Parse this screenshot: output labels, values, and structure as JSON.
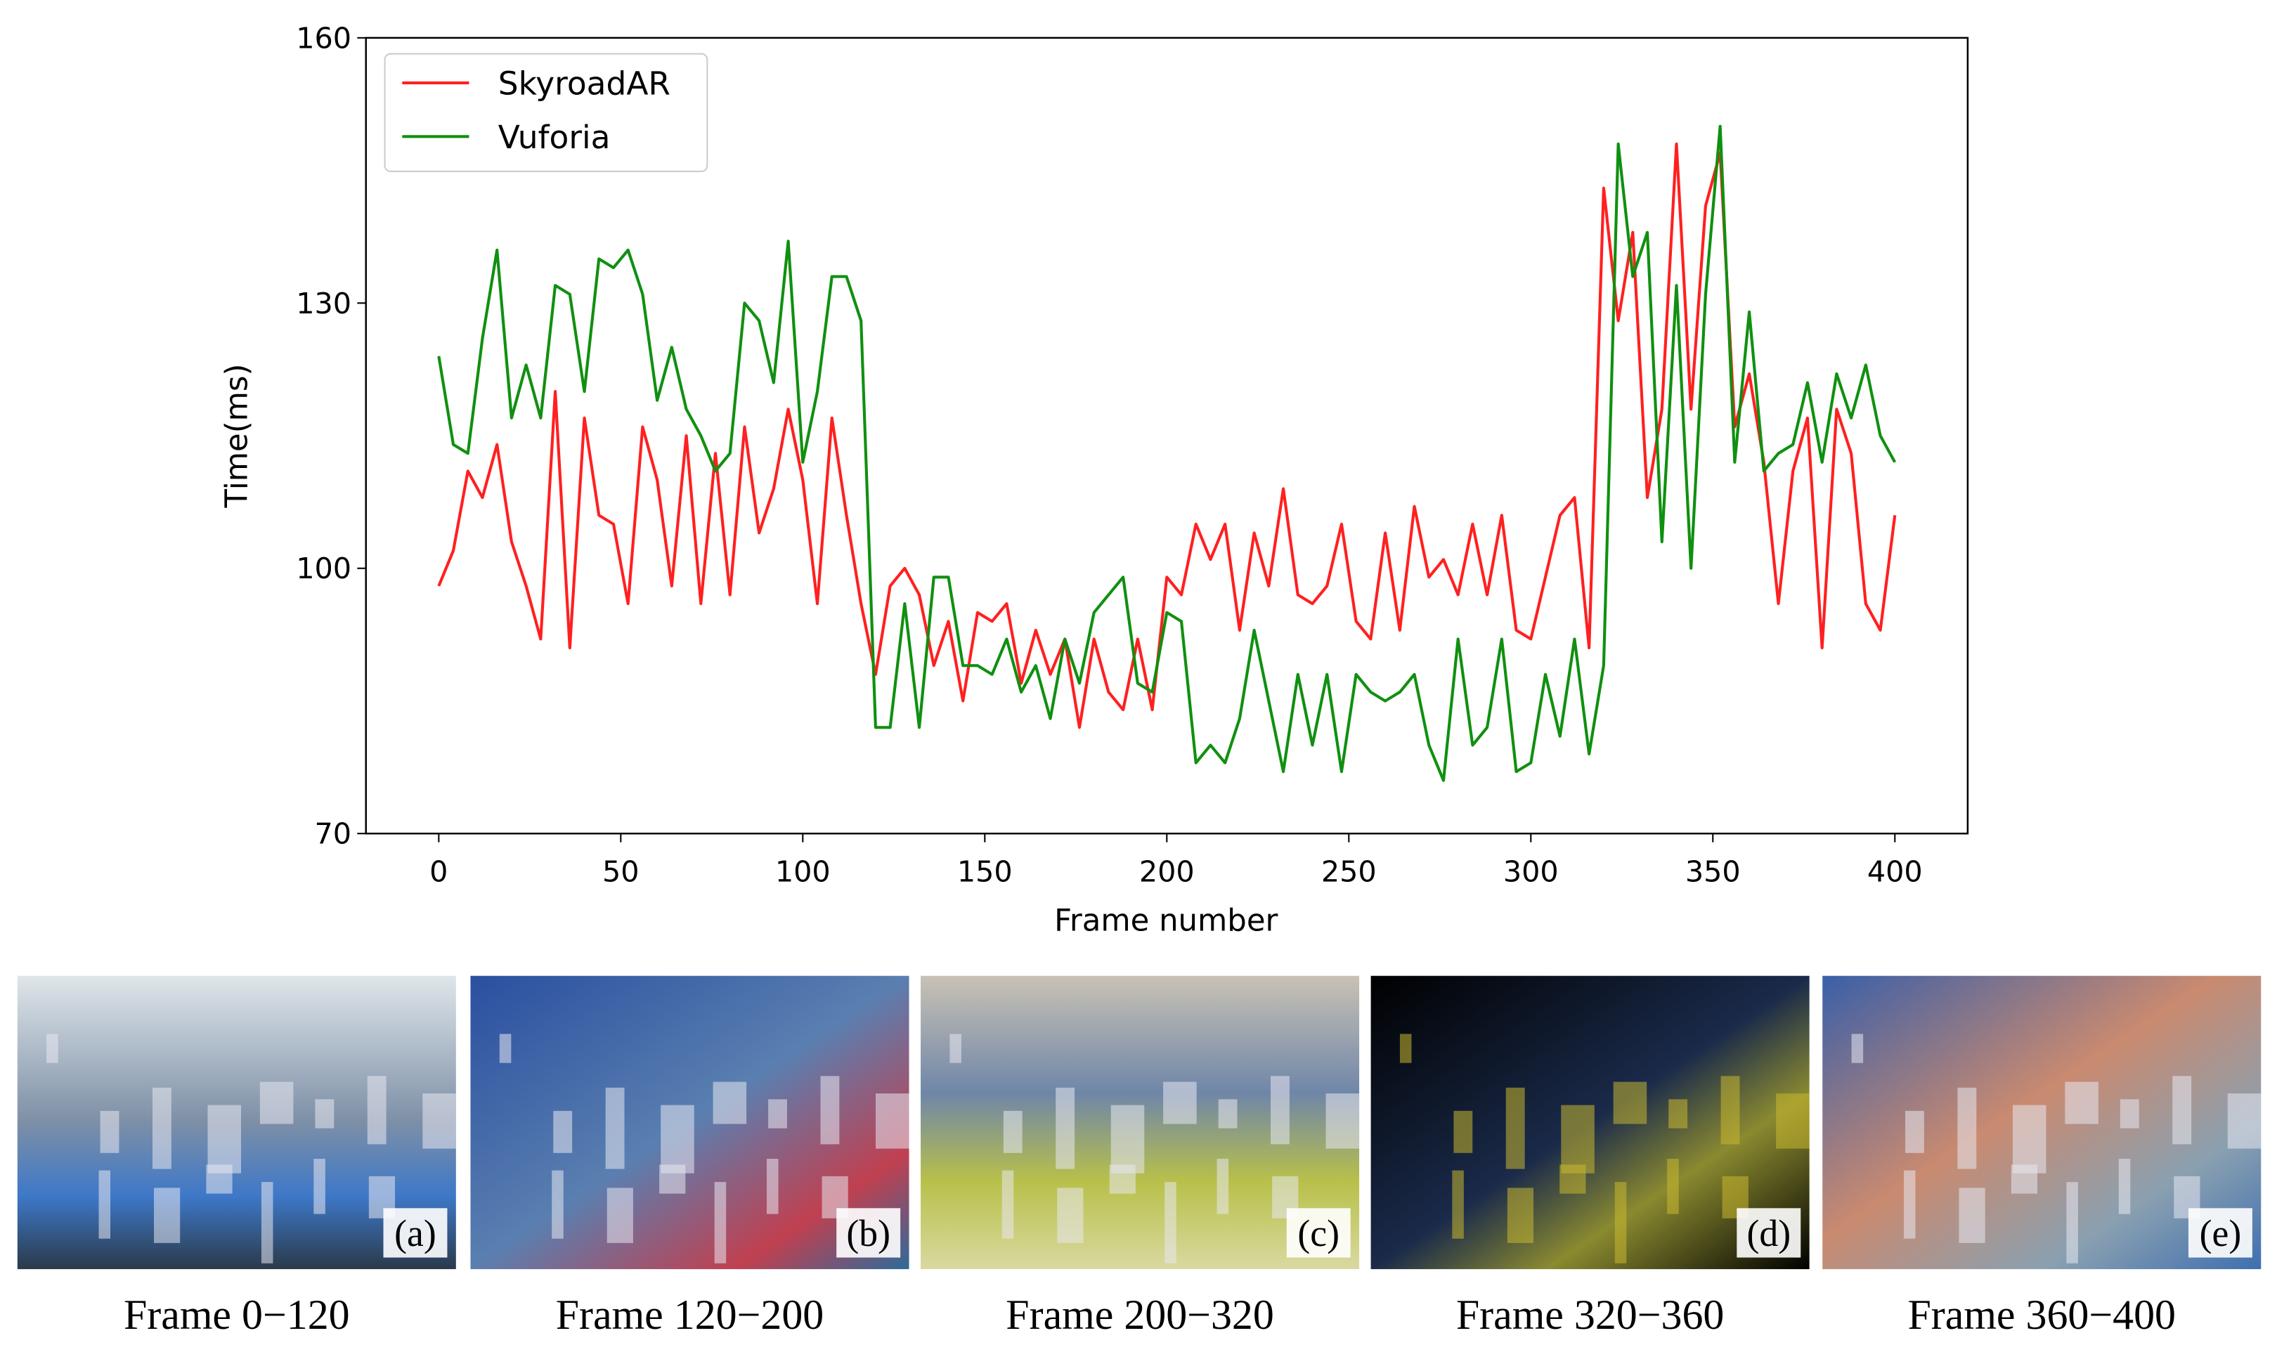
{
  "chart_data": {
    "type": "line",
    "xlabel": "Frame number",
    "ylabel": "Time(ms)",
    "x": [
      0,
      4,
      8,
      12,
      16,
      20,
      24,
      28,
      32,
      36,
      40,
      44,
      48,
      52,
      56,
      60,
      64,
      68,
      72,
      76,
      80,
      84,
      88,
      92,
      96,
      100,
      104,
      108,
      112,
      116,
      120,
      124,
      128,
      132,
      136,
      140,
      144,
      148,
      152,
      156,
      160,
      164,
      168,
      172,
      176,
      180,
      184,
      188,
      192,
      196,
      200,
      204,
      208,
      212,
      216,
      220,
      224,
      228,
      232,
      236,
      240,
      244,
      248,
      252,
      256,
      260,
      264,
      268,
      272,
      276,
      280,
      284,
      288,
      292,
      296,
      300,
      304,
      308,
      312,
      316,
      320,
      324,
      328,
      332,
      336,
      340,
      344,
      348,
      352,
      356,
      360,
      364,
      368,
      372,
      376,
      380,
      384,
      388,
      392,
      396,
      400
    ],
    "series": [
      {
        "name": "SkyroadAR",
        "color": "#ff2020",
        "values": [
          98,
          102,
          111,
          108,
          114,
          103,
          98,
          92,
          120,
          91,
          117,
          106,
          105,
          96,
          116,
          110,
          98,
          115,
          96,
          113,
          97,
          116,
          104,
          109,
          118,
          110,
          96,
          117,
          106,
          96,
          88,
          98,
          100,
          97,
          89,
          94,
          85,
          95,
          94,
          96,
          87,
          93,
          88,
          92,
          82,
          92,
          86,
          84,
          92,
          84,
          99,
          97,
          105,
          101,
          105,
          93,
          104,
          98,
          109,
          97,
          96,
          98,
          105,
          94,
          92,
          104,
          93,
          107,
          99,
          101,
          97,
          105,
          97,
          106,
          93,
          92,
          99,
          106,
          108,
          91,
          143,
          128,
          138,
          108,
          118,
          148,
          118,
          141,
          147,
          116,
          122,
          112,
          96,
          111,
          117,
          91,
          118,
          113,
          96,
          93,
          106
        ]
      },
      {
        "name": "Vuforia",
        "color": "#109010",
        "values": [
          124,
          114,
          113,
          126,
          136,
          117,
          123,
          117,
          132,
          131,
          120,
          135,
          134,
          136,
          131,
          119,
          125,
          118,
          115,
          111,
          113,
          130,
          128,
          121,
          137,
          112,
          120,
          133,
          133,
          128,
          82,
          82,
          96,
          82,
          99,
          99,
          89,
          89,
          88,
          92,
          86,
          89,
          83,
          92,
          87,
          95,
          97,
          99,
          87,
          86,
          95,
          94,
          78,
          80,
          78,
          83,
          93,
          85,
          77,
          88,
          80,
          88,
          77,
          88,
          86,
          85,
          86,
          88,
          80,
          76,
          92,
          80,
          82,
          92,
          77,
          78,
          88,
          81,
          92,
          79,
          89,
          148,
          133,
          138,
          103,
          132,
          100,
          131,
          150,
          112,
          129,
          111,
          113,
          114,
          121,
          112,
          122,
          117,
          123,
          115,
          112
        ]
      }
    ],
    "xlim": [
      -20,
      420
    ],
    "xticks": [
      0,
      50,
      100,
      150,
      200,
      250,
      300,
      350,
      400
    ],
    "ylim": [
      70,
      160
    ],
    "yticks": [
      70,
      100,
      130,
      160
    ],
    "legend": "upper left",
    "grid": false
  },
  "panels": [
    {
      "label": "(a)",
      "caption": "Frame 0−120"
    },
    {
      "label": "(b)",
      "caption": "Frame 120−200"
    },
    {
      "label": "(c)",
      "caption": "Frame 200−320"
    },
    {
      "label": "(d)",
      "caption": "Frame 320−360"
    },
    {
      "label": "(e)",
      "caption": "Frame 360−400"
    }
  ]
}
